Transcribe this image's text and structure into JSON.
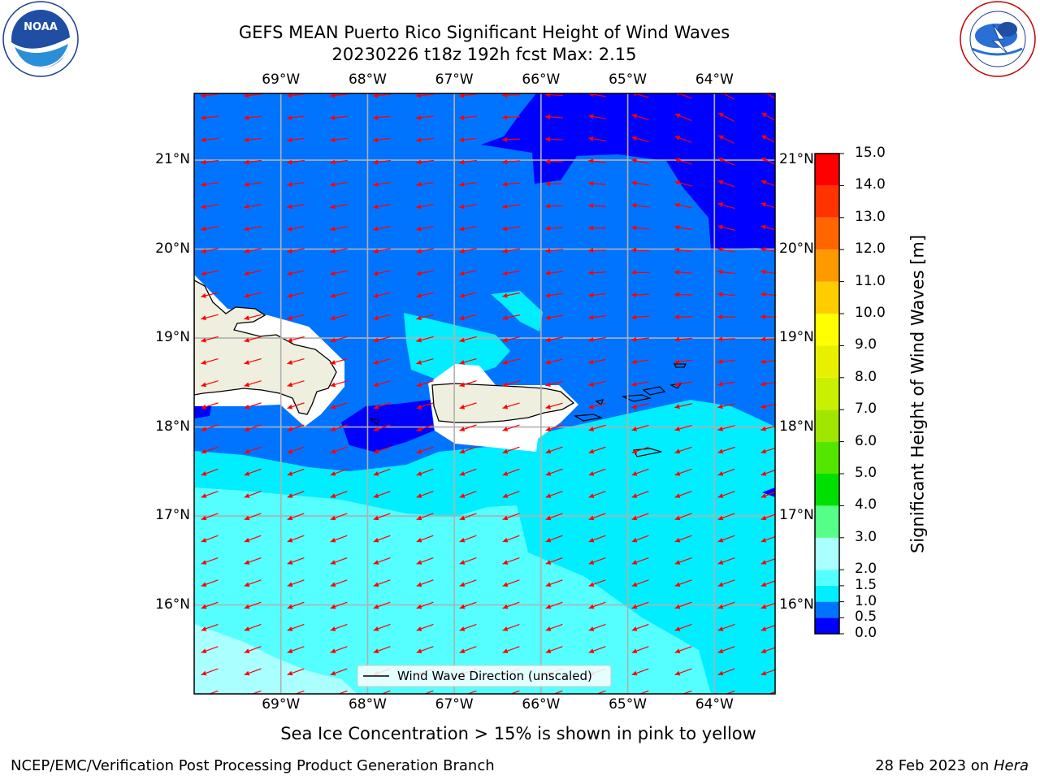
{
  "header": {
    "title_line1": "GEFS MEAN Puerto Rico Significant Height of Wind Waves",
    "title_line2": "20230226 t18z 192h fcst   Max: 2.15"
  },
  "logos": {
    "left": "NOAA",
    "left_ring_text": "NATIONAL OCEANIC AND ATMOSPHERIC ADMINISTRATION · U.S. DEPARTMENT OF COMMERCE",
    "right_ring_text": "NATIONAL WEATHER SERVICE"
  },
  "map": {
    "lon_labels": [
      "69°W",
      "68°W",
      "67°W",
      "66°W",
      "65°W",
      "64°W"
    ],
    "lat_labels": [
      "21°N",
      "20°N",
      "19°N",
      "18°N",
      "17°N",
      "16°N"
    ],
    "lon_range": [
      -70.0,
      -63.3
    ],
    "lat_range": [
      15.0,
      21.75
    ],
    "legend_text": "Wind Wave Direction (unscaled)",
    "arrow_color": "#ff0000",
    "land_color": "#efefdf"
  },
  "colorbar": {
    "label": "Significant Height of Wind Waves [m]",
    "ticks": [
      "0.0",
      "0.5",
      "1.0",
      "1.5",
      "2.0",
      "3.0",
      "4.0",
      "5.0",
      "6.0",
      "7.0",
      "8.0",
      "9.0",
      "10.0",
      "11.0",
      "12.0",
      "13.0",
      "14.0",
      "15.0"
    ],
    "colors": [
      "#0000ff",
      "#0074ff",
      "#00eeff",
      "#55ffff",
      "#aaffff",
      "#55ff88",
      "#00e000",
      "#55e600",
      "#a0e600",
      "#c8f000",
      "#e8f000",
      "#ffff00",
      "#ffcc00",
      "#ff9900",
      "#ff6600",
      "#ff3300",
      "#ff0000"
    ]
  },
  "footer": {
    "note": "Sea Ice Concentration > 15% is shown in pink to yellow",
    "left": "NCEP/EMC/Verification Post Processing Product Generation Branch",
    "right_prefix": "28 Feb 2023 on ",
    "right_machine": "Hera"
  }
}
